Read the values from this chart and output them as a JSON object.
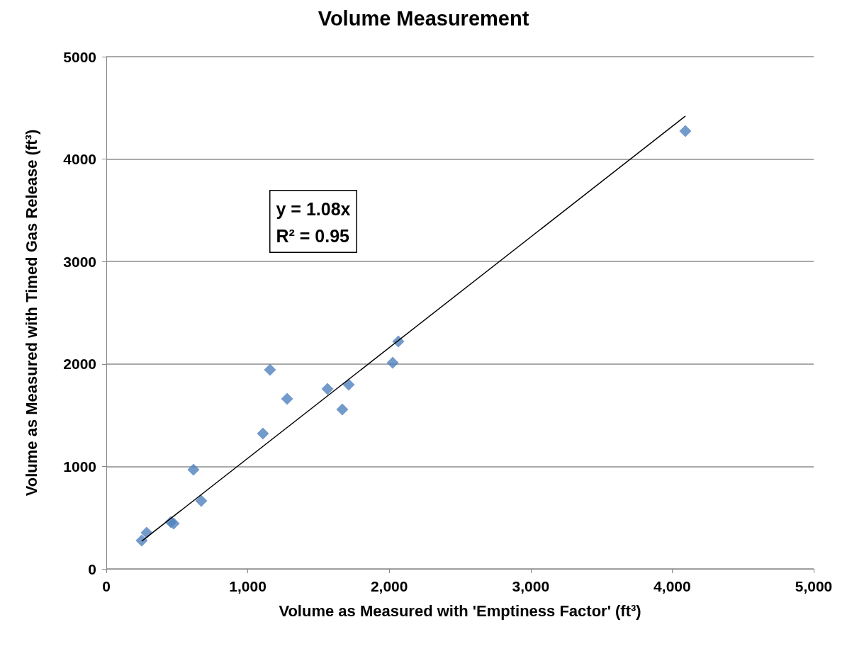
{
  "chart_data": {
    "type": "scatter",
    "title": "Volume Measurement",
    "xlabel": "Volume as Measured with 'Emptiness Factor' (ft³)",
    "ylabel": "Volume as Measured with Timed Gas Release (ft³)",
    "annotations": [
      "y = 1.08x\nR² = 0.95"
    ],
    "x": [
      250,
      285,
      456,
      476,
      616,
      671,
      1107,
      1157,
      1278,
      1563,
      1668,
      1713,
      2024,
      2064,
      4093
    ],
    "series": [
      {
        "color": "#4f81bd",
        "marker": "diamond",
        "values": [
          277,
          353,
          456,
          443,
          968,
          664,
          1321,
          1943,
          1660,
          1757,
          1556,
          1798,
          2012,
          2220,
          4274
        ]
      },
      {
        "type": "line",
        "color": "#000000",
        "marker": "none",
        "x": [
          250,
          4093
        ],
        "values": [
          270,
          4420
        ]
      }
    ],
    "xlim": [
      0,
      5000
    ],
    "xticks": [
      0,
      {
        "value": 1000,
        "label": "1,000"
      },
      {
        "value": 2000,
        "label": "2,000"
      },
      {
        "value": 3000,
        "label": "3,000"
      },
      {
        "value": 4000,
        "label": "4,000"
      },
      {
        "value": 5000,
        "label": "5,000"
      }
    ],
    "ylim": [
      0,
      5000
    ],
    "yticks": [
      0,
      1000,
      2000,
      3000,
      4000,
      5000
    ],
    "grid": "y"
  }
}
